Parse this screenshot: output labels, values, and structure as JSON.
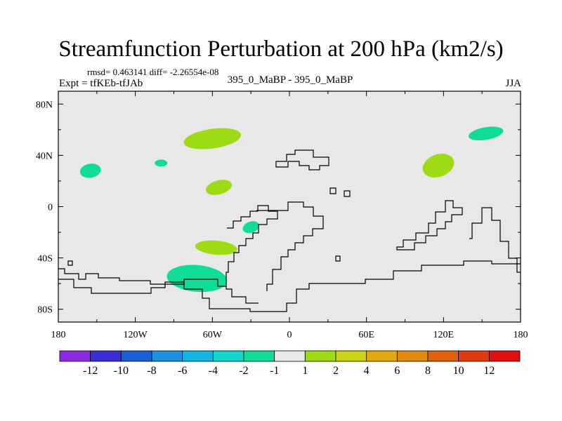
{
  "title": "Streamfunction Perturbation at 200 hPa (km2/s)",
  "stats": "rmsd= 0.463141 diff= -2.26554e-08",
  "subtitle": "395_0_MaBP - 395_0_MaBP",
  "expt": "Expt = tfKEb-tfJAb",
  "season": "JJA",
  "map": {
    "background": "#e8e8e8",
    "lon_ticks": [
      "180",
      "120W",
      "60W",
      "0",
      "60E",
      "120E",
      "180"
    ],
    "lat_ticks": [
      "80N",
      "40N",
      "0",
      "40S",
      "80S"
    ]
  },
  "colorbar": {
    "colors": [
      "#8a2be2",
      "#3a2fd6",
      "#1b5fd8",
      "#1e90e0",
      "#12b6e0",
      "#14d6cc",
      "#10dc9a",
      "#e8e8e8",
      "#9ddc14",
      "#c8d414",
      "#e0aa10",
      "#e08a10",
      "#e06010",
      "#e03a10",
      "#e01010"
    ],
    "labels": [
      "-12",
      "-10",
      "-8",
      "-6",
      "-4",
      "-2",
      "-1",
      "1",
      "2",
      "4",
      "6",
      "8",
      "10",
      "12"
    ]
  },
  "chart_data": {
    "type": "heatmap",
    "title": "Streamfunction Perturbation at 200 hPa (km2/s)",
    "xlabel": "",
    "ylabel": "",
    "xlim": [
      -180,
      180
    ],
    "ylim": [
      -90,
      90
    ],
    "anomalies": [
      {
        "lon": -155,
        "lat": 28,
        "category": "-2 to -1",
        "color": "#10dc9a"
      },
      {
        "lon": -100,
        "lat": 34,
        "category": "-2 to -1",
        "color": "#10dc9a"
      },
      {
        "lon": -60,
        "lat": 53,
        "category": "1 to 2",
        "color": "#9ddc14"
      },
      {
        "lon": -55,
        "lat": 15,
        "category": "1 to 2",
        "color": "#9ddc14"
      },
      {
        "lon": -57,
        "lat": -32,
        "category": "1 to 2",
        "color": "#9ddc14"
      },
      {
        "lon": -30,
        "lat": -16,
        "category": "-2 to -1",
        "color": "#10dc9a"
      },
      {
        "lon": -72,
        "lat": -56,
        "category": "-2 to -1",
        "color": "#10dc9a"
      },
      {
        "lon": 116,
        "lat": 32,
        "category": "1 to 2",
        "color": "#9ddc14"
      },
      {
        "lon": 153,
        "lat": 57,
        "category": "-2 to -1",
        "color": "#10dc9a"
      }
    ]
  }
}
